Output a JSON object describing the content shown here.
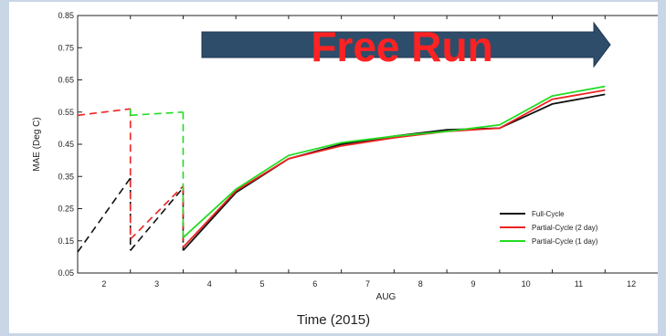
{
  "chart_data": {
    "type": "line",
    "ylabel": "MAE (Deg C)",
    "xlabel": "AUG",
    "xlim": [
      1.5,
      12.5
    ],
    "ylim": [
      0.05,
      0.85
    ],
    "xticks": [
      2,
      3,
      4,
      5,
      6,
      7,
      8,
      9,
      10,
      11,
      12
    ],
    "yticks": [
      0.05,
      0.15,
      0.25,
      0.35,
      0.45,
      0.55,
      0.65,
      0.75,
      0.85
    ],
    "ytick_labels": [
      "0.05",
      "0.15",
      "0.25",
      "0.35",
      "0.45",
      "0.55",
      "0.65",
      "0.75",
      "0.85"
    ],
    "legend_position": "lower-right",
    "series": [
      {
        "name": "Full-Cycle",
        "color": "#111111",
        "dashed_segments": [
          [
            [
              1.5,
              0.115
            ],
            [
              2.5,
              0.345
            ]
          ],
          [
            [
              2.5,
              0.12
            ],
            [
              3.5,
              0.315
            ]
          ]
        ],
        "verticals": [
          [
            2.5,
            0.345,
            0.12
          ],
          [
            3.5,
            0.315,
            0.12
          ]
        ],
        "solid": [
          [
            3.5,
            0.12
          ],
          [
            4.5,
            0.3
          ],
          [
            5.5,
            0.405
          ],
          [
            6.5,
            0.45
          ],
          [
            7.5,
            0.475
          ],
          [
            8.5,
            0.495
          ],
          [
            9.5,
            0.5
          ],
          [
            10.5,
            0.575
          ],
          [
            11.5,
            0.605
          ]
        ]
      },
      {
        "name": "Partial-Cycle (2 day)",
        "color": "#ee2222",
        "dashed_segments": [
          [
            [
              1.5,
              0.54
            ],
            [
              2.5,
              0.56
            ]
          ],
          [
            [
              2.5,
              0.155
            ],
            [
              3.5,
              0.32
            ]
          ]
        ],
        "verticals": [
          [
            2.5,
            0.56,
            0.155
          ],
          [
            3.5,
            0.32,
            0.13
          ]
        ],
        "solid": [
          [
            3.5,
            0.13
          ],
          [
            4.5,
            0.305
          ],
          [
            5.5,
            0.405
          ],
          [
            6.5,
            0.445
          ],
          [
            7.5,
            0.47
          ],
          [
            8.5,
            0.49
          ],
          [
            9.5,
            0.5
          ],
          [
            10.5,
            0.59
          ],
          [
            11.5,
            0.618
          ]
        ]
      },
      {
        "name": "Partial-Cycle (1 day)",
        "color": "#22dd22",
        "dashed_segments": [
          [
            [
              2.5,
              0.54
            ],
            [
              3.5,
              0.55
            ]
          ]
        ],
        "verticals": [
          [
            2.5,
            0.56,
            0.54
          ],
          [
            3.5,
            0.55,
            0.16
          ]
        ],
        "solid": [
          [
            3.5,
            0.16
          ],
          [
            4.5,
            0.31
          ],
          [
            5.5,
            0.415
          ],
          [
            6.5,
            0.455
          ],
          [
            7.5,
            0.475
          ],
          [
            8.5,
            0.49
          ],
          [
            9.5,
            0.51
          ],
          [
            10.5,
            0.6
          ],
          [
            11.5,
            0.63
          ]
        ]
      }
    ],
    "annotation": "Free Run",
    "annotation_color": "#ff2222",
    "arrow_color": "#2e4d6b"
  },
  "footer_label": "Time (2015)"
}
